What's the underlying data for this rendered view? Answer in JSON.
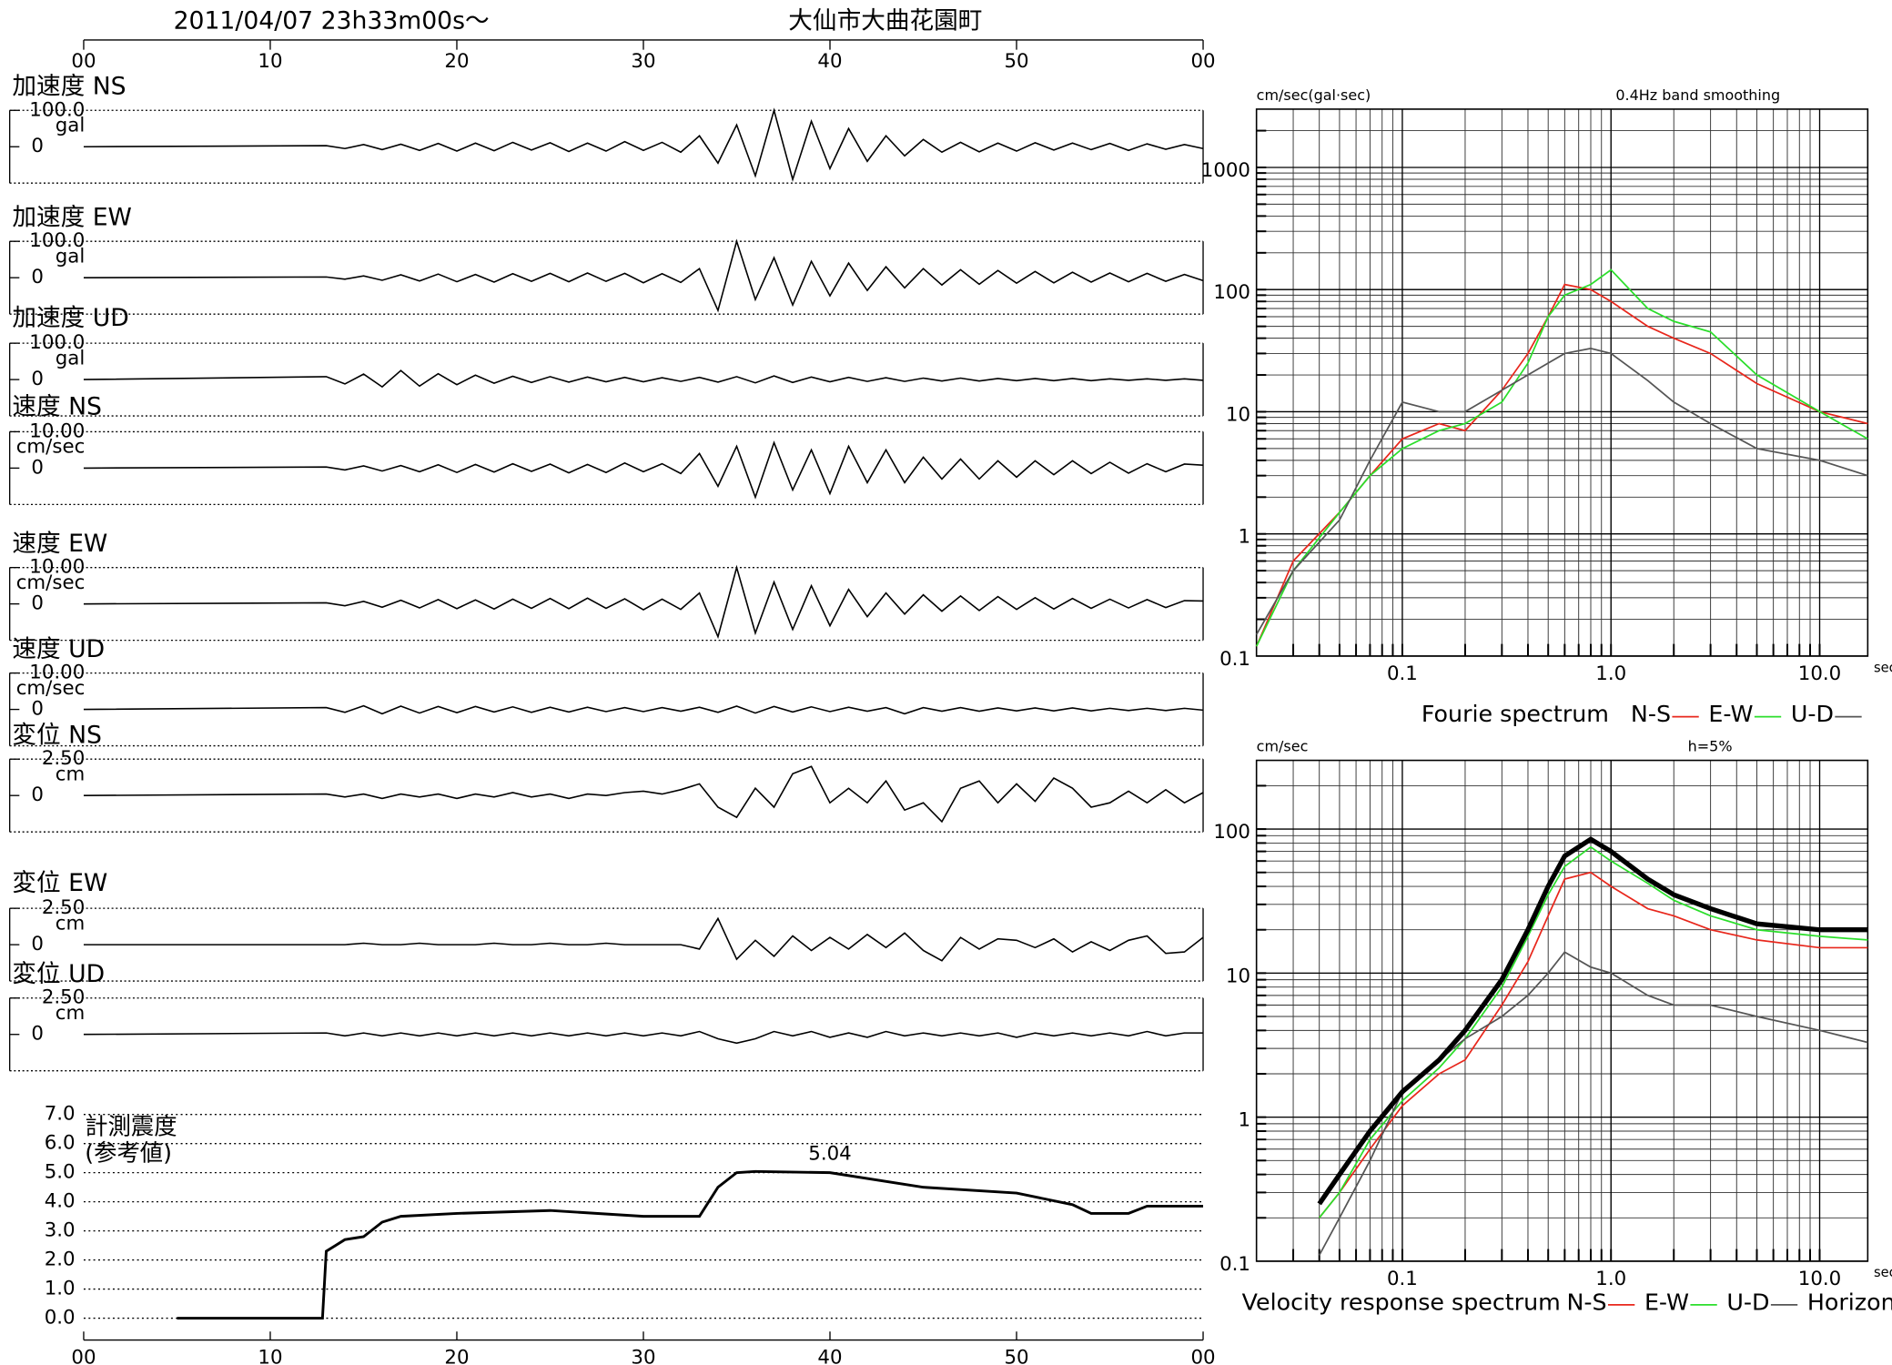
{
  "header": {
    "datetime": "2011/04/07  23h33m00s〜",
    "location": "大仙市大曲花園町"
  },
  "chart_data": [
    {
      "type": "waveforms",
      "xlim": [
        0,
        60
      ],
      "xticks": [
        {
          "value": 0,
          "label": "00"
        },
        10,
        20,
        30,
        40,
        50,
        {
          "value": 60,
          "label": "00"
        }
      ],
      "x": [
        0,
        13,
        14,
        15,
        16,
        17,
        18,
        19,
        20,
        21,
        22,
        23,
        24,
        25,
        26,
        27,
        28,
        29,
        30,
        31,
        32,
        33,
        34,
        35,
        36,
        37,
        38,
        39,
        40,
        41,
        42,
        43,
        44,
        45,
        46,
        47,
        48,
        49,
        50,
        51,
        52,
        53,
        54,
        55,
        56,
        57,
        58,
        59,
        60
      ],
      "panels": [
        {
          "title": "加速度 NS",
          "ylabel": "gal",
          "ylim": [
            -100,
            100
          ],
          "yticks": [
            {
              "value": 100,
              "label": "100.0"
            },
            0
          ],
          "values": [
            0,
            3,
            -5,
            6,
            -8,
            7,
            -10,
            9,
            -12,
            10,
            -11,
            12,
            -9,
            11,
            -13,
            10,
            -12,
            14,
            -10,
            12,
            -15,
            30,
            -45,
            60,
            -80,
            100,
            -90,
            70,
            -60,
            50,
            -40,
            30,
            -25,
            20,
            -15,
            12,
            -14,
            10,
            -12,
            11,
            -9,
            10,
            -8,
            9,
            -10,
            8,
            -7,
            6,
            -5
          ]
        },
        {
          "title": "加速度 EW",
          "ylabel": "gal",
          "ylim": [
            -100,
            100
          ],
          "yticks": [
            {
              "value": 100,
              "label": "100.0"
            },
            0
          ],
          "values": [
            0,
            2,
            -4,
            5,
            -7,
            8,
            -9,
            10,
            -11,
            9,
            -12,
            11,
            -10,
            12,
            -11,
            13,
            -10,
            12,
            -14,
            11,
            -13,
            25,
            -90,
            100,
            -60,
            55,
            -75,
            45,
            -50,
            40,
            -35,
            30,
            -28,
            25,
            -20,
            22,
            -18,
            20,
            -15,
            17,
            -14,
            15,
            -12,
            13,
            -11,
            12,
            -10,
            9,
            -8
          ]
        },
        {
          "title": "加速度 UD",
          "ylabel": "gal",
          "ylim": [
            -100,
            100
          ],
          "yticks": [
            {
              "value": 100,
              "label": "100.0"
            },
            0
          ],
          "values": [
            0,
            8,
            -12,
            15,
            -20,
            25,
            -18,
            16,
            -14,
            12,
            -10,
            9,
            -8,
            8,
            -7,
            7,
            -6,
            6,
            -6,
            5,
            -5,
            6,
            -7,
            8,
            -9,
            10,
            -8,
            7,
            -6,
            6,
            -5,
            5,
            -5,
            4,
            -4,
            4,
            -4,
            3,
            -3,
            3,
            -3,
            3,
            -3,
            2,
            -2,
            2,
            -2,
            2,
            -2
          ]
        },
        {
          "title": "速度 NS",
          "ylabel": "cm/sec",
          "ylim": [
            -10,
            10
          ],
          "yticks": [
            {
              "value": 10,
              "label": "10.00"
            },
            0
          ],
          "values": [
            0,
            0.3,
            -0.5,
            0.6,
            -0.8,
            0.7,
            -1,
            0.9,
            -1.2,
            1,
            -1.1,
            1.2,
            -0.9,
            1.1,
            -1.3,
            1,
            -1.2,
            1.4,
            -1,
            1.2,
            -1.5,
            4,
            -5,
            6,
            -8,
            7,
            -6,
            5,
            -7,
            6,
            -4,
            5,
            -4,
            3,
            -3,
            2.5,
            -3,
            2,
            -2.5,
            2,
            -1.8,
            2,
            -1.5,
            1.6,
            -1.4,
            1.2,
            -1,
            1.1,
            0.8
          ]
        },
        {
          "title": "速度 EW",
          "ylabel": "cm/sec",
          "ylim": [
            -10,
            10
          ],
          "yticks": [
            {
              "value": 10,
              "label": "10.00"
            },
            0
          ],
          "values": [
            0,
            0.3,
            -0.5,
            0.7,
            -0.9,
            1,
            -1.1,
            1.2,
            -1.3,
            1.1,
            -1.4,
            1.3,
            -1.2,
            1.5,
            -1.3,
            1.6,
            -1.2,
            1.4,
            -1.6,
            1.3,
            -1.5,
            3,
            -9,
            10,
            -8,
            6,
            -7,
            5,
            -6,
            4,
            -3.5,
            3,
            -2.8,
            2.5,
            -2,
            2.2,
            -1.8,
            2,
            -1.5,
            1.7,
            -1.4,
            1.5,
            -1.2,
            1.3,
            -1.1,
            1.2,
            -1,
            0.9,
            0.8
          ]
        },
        {
          "title": "速度 UD",
          "ylabel": "cm/sec",
          "ylim": [
            -10,
            10
          ],
          "yticks": [
            {
              "value": 10,
              "label": "10.00"
            },
            0
          ],
          "values": [
            0,
            0.5,
            -0.8,
            1,
            -1.2,
            0.9,
            -1,
            0.8,
            -0.9,
            0.8,
            -0.7,
            0.7,
            -0.8,
            0.6,
            -0.7,
            0.6,
            -0.6,
            0.5,
            -0.6,
            0.5,
            -0.5,
            0.6,
            -0.8,
            0.9,
            -1,
            0.8,
            -0.7,
            0.7,
            -0.6,
            0.6,
            -0.5,
            0.5,
            -1.2,
            0.5,
            -0.5,
            0.5,
            -0.5,
            0.4,
            -0.4,
            0.4,
            -0.4,
            0.4,
            -0.4,
            0.3,
            -0.3,
            0.3,
            -0.3,
            0.3,
            -0.2
          ]
        },
        {
          "title": "変位 NS",
          "ylabel": "cm",
          "ylim": [
            -2.5,
            2.5
          ],
          "yticks": [
            {
              "value": 2.5,
              "label": "2.50"
            },
            0
          ],
          "values": [
            0,
            0.1,
            -0.1,
            0.1,
            -0.2,
            0.1,
            -0.1,
            0.1,
            -0.2,
            0.1,
            -0.1,
            0.2,
            -0.1,
            0.1,
            -0.2,
            0.1,
            0,
            0.2,
            0.3,
            0.1,
            0.4,
            0.8,
            -0.8,
            -1.5,
            0.5,
            -0.8,
            1.5,
            2,
            -0.5,
            0.5,
            -0.5,
            1,
            -1,
            -0.5,
            -1.8,
            0.5,
            1,
            -0.5,
            0.8,
            -0.4,
            1.2,
            0.5,
            -0.8,
            -0.5,
            0.3,
            -0.5,
            0.4,
            -0.5,
            0.2
          ]
        },
        {
          "title": "変位 EW",
          "ylabel": "cm",
          "ylim": [
            -2.5,
            2.5
          ],
          "yticks": [
            {
              "value": 2.5,
              "label": "2.50"
            },
            0
          ],
          "values": [
            0,
            0,
            0,
            0.1,
            0,
            0,
            0.1,
            0,
            0,
            0,
            0.1,
            0,
            0,
            0.1,
            0,
            0,
            0.1,
            0,
            0,
            0,
            0,
            -0.3,
            1.8,
            -1,
            0.3,
            -0.8,
            0.6,
            -0.4,
            0.5,
            -0.3,
            0.7,
            -0.2,
            0.8,
            -0.4,
            -1.1,
            0.5,
            -0.3,
            0.4,
            0.3,
            -0.2,
            0.4,
            -0.5,
            0.2,
            -0.4,
            0.3,
            0.6,
            -0.6,
            -0.5,
            0.5
          ]
        },
        {
          "title": "変位 UD",
          "ylabel": "cm",
          "ylim": [
            -2.5,
            2.5
          ],
          "yticks": [
            {
              "value": 2.5,
              "label": "2.50"
            },
            0
          ],
          "values": [
            0,
            0.1,
            -0.1,
            0.1,
            -0.1,
            0.1,
            -0.1,
            0.1,
            -0.1,
            0.1,
            -0.1,
            0.1,
            -0.1,
            0.1,
            -0.1,
            0.1,
            -0.1,
            0.1,
            -0.1,
            0.1,
            -0.1,
            0.2,
            -0.3,
            -0.6,
            -0.3,
            0.2,
            -0.1,
            0.2,
            -0.2,
            0.1,
            -0.2,
            0.2,
            -0.1,
            0.1,
            -0.1,
            0.1,
            -0.1,
            0.1,
            -0.2,
            0.1,
            -0.1,
            0.1,
            -0.1,
            0.1,
            -0.1,
            0.2,
            -0.1,
            0.1,
            0.1
          ]
        }
      ]
    },
    {
      "type": "line",
      "ylabel": [
        "計測震度",
        "(参考値)"
      ],
      "color": "#000000",
      "grid": true,
      "xlim": [
        0,
        60
      ],
      "xticks": [
        {
          "value": 0,
          "label": "00"
        },
        10,
        20,
        30,
        40,
        50,
        {
          "value": 60,
          "label": "00"
        }
      ],
      "ylim": [
        0,
        7
      ],
      "yticks": [
        {
          "value": 0,
          "label": "0.0"
        },
        {
          "value": 1,
          "label": "1.0"
        },
        {
          "value": 2,
          "label": "2.0"
        },
        {
          "value": 3,
          "label": "3.0"
        },
        {
          "value": 4,
          "label": "4.0"
        },
        {
          "value": 5,
          "label": "5.0"
        },
        {
          "value": 6,
          "label": "6.0"
        },
        {
          "value": 7,
          "label": "7.0"
        }
      ],
      "x": [
        5,
        12.8,
        13,
        13.5,
        14,
        15,
        16,
        17,
        20,
        25,
        30,
        33,
        34,
        35,
        36,
        40,
        45,
        50,
        53,
        54,
        56,
        57,
        60
      ],
      "values": [
        0,
        0,
        2.3,
        2.5,
        2.7,
        2.8,
        3.3,
        3.5,
        3.6,
        3.7,
        3.5,
        3.5,
        4.5,
        5.0,
        5.04,
        5.0,
        4.5,
        4.3,
        3.9,
        3.6,
        3.6,
        3.85,
        3.85
      ],
      "annotations": [
        {
          "x": 40,
          "y": 5.04,
          "text": "5.04"
        }
      ]
    },
    {
      "type": "spectrum",
      "ylabel": "cm/sec(gal·sec)",
      "note": "0.4Hz band smoothing",
      "xlabel": "sec",
      "legend_title": "Fourie spectrum",
      "xlog": true,
      "ylog": true,
      "grid": true,
      "xlim": [
        0.02,
        17
      ],
      "ylim": [
        0.1,
        3000
      ],
      "xticks": [
        0.1,
        {
          "value": 1,
          "label": "1.0"
        },
        {
          "value": 10,
          "label": "10.0"
        }
      ],
      "yticks": [
        0.1,
        1,
        10,
        100,
        1000
      ],
      "x": [
        0.02,
        0.03,
        0.05,
        0.07,
        0.1,
        0.15,
        0.2,
        0.3,
        0.4,
        0.5,
        0.6,
        0.8,
        1.0,
        1.5,
        2,
        3,
        5,
        10,
        17
      ],
      "series": [
        {
          "name": "N-S",
          "color": "#e8271c",
          "width": 1.3,
          "values": [
            0.12,
            0.6,
            1.5,
            3,
            6,
            8,
            7,
            15,
            30,
            60,
            110,
            100,
            80,
            50,
            40,
            30,
            17,
            10,
            8
          ]
        },
        {
          "name": "E-W",
          "color": "#2bde2b",
          "width": 1.3,
          "values": [
            0.12,
            0.5,
            1.5,
            3,
            5,
            7,
            8,
            12,
            25,
            60,
            90,
            110,
            145,
            70,
            55,
            45,
            20,
            10,
            6
          ]
        },
        {
          "name": "U-D",
          "color": "#555555",
          "width": 1.3,
          "values": [
            0.15,
            0.5,
            1.3,
            4,
            12,
            10,
            10,
            15,
            20,
            25,
            30,
            33,
            30,
            18,
            12,
            8,
            5,
            4,
            3
          ]
        }
      ]
    },
    {
      "type": "spectrum",
      "ylabel": "cm/sec",
      "note": "h=5%",
      "xlabel": "sec",
      "legend_title": "Velocity response spectrum",
      "xlog": true,
      "ylog": true,
      "grid": true,
      "xlim": [
        0.02,
        17
      ],
      "ylim": [
        0.1,
        300
      ],
      "xticks": [
        0.1,
        {
          "value": 1,
          "label": "1.0"
        },
        {
          "value": 10,
          "label": "10.0"
        }
      ],
      "yticks": [
        0.1,
        1,
        10,
        100
      ],
      "x": [
        0.04,
        0.05,
        0.07,
        0.1,
        0.15,
        0.2,
        0.3,
        0.4,
        0.5,
        0.6,
        0.8,
        1.0,
        1.5,
        2,
        3,
        5,
        10,
        17
      ],
      "series": [
        {
          "name": "N-S",
          "color": "#e8271c",
          "width": 1.3,
          "values": [
            0.2,
            0.3,
            0.6,
            1.2,
            2,
            2.5,
            6,
            12,
            25,
            45,
            50,
            40,
            28,
            25,
            20,
            17,
            15,
            15
          ]
        },
        {
          "name": "E-W",
          "color": "#2bde2b",
          "width": 1.3,
          "values": [
            0.2,
            0.3,
            0.7,
            1.3,
            2.2,
            3.5,
            8,
            18,
            35,
            55,
            75,
            60,
            42,
            32,
            25,
            20,
            18,
            17
          ]
        },
        {
          "name": "U-D",
          "color": "#555555",
          "width": 1.3,
          "values": [
            0.11,
            0.2,
            0.5,
            1.5,
            2.5,
            3.5,
            5,
            7,
            10,
            14,
            11,
            10,
            7,
            6,
            6,
            5,
            4,
            3.3
          ]
        },
        {
          "name": "Horizon",
          "color": "#000000",
          "width": 4,
          "values": [
            0.25,
            0.4,
            0.8,
            1.5,
            2.5,
            4,
            9,
            20,
            40,
            65,
            85,
            70,
            45,
            35,
            28,
            22,
            20,
            20
          ]
        }
      ]
    }
  ]
}
